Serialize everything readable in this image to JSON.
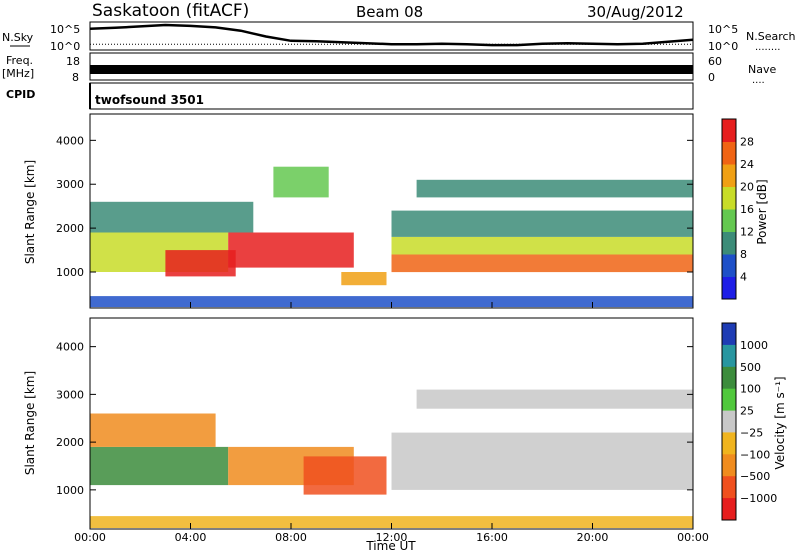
{
  "header": {
    "station": "Saskatoon (fitACF)",
    "beam": "Beam 08",
    "date": "30/Aug/2012"
  },
  "noise_panel": {
    "left_label": "N.Sky",
    "left_ticks": [
      "10^5",
      "10^0"
    ],
    "right_ticks": [
      "10^5",
      "10^0"
    ],
    "right_label": "N.Search",
    "right_dots": "........",
    "sky_noise_log": [
      4.0,
      4.2,
      4.5,
      4.8,
      4.6,
      4.3,
      3.6,
      2.4,
      1.5,
      1.4,
      1.2,
      1.0,
      0.8,
      0.8,
      0.9,
      0.8,
      0.6,
      0.6,
      0.9,
      1.0,
      0.9,
      0.8,
      0.9,
      1.3,
      1.7
    ],
    "search_noise_log": [
      0.8,
      0.8,
      0.8,
      0.8,
      0.8,
      0.8,
      0.8,
      0.8,
      0.8,
      0.8,
      0.8,
      0.8,
      0.8,
      0.8,
      0.8,
      0.8,
      0.8,
      0.8,
      0.8,
      0.8,
      0.8,
      0.8,
      0.8,
      0.8,
      0.8
    ]
  },
  "freq_panel": {
    "left_label_1": "Freq.",
    "left_label_2": "[MHz]",
    "left_ticks": [
      "18",
      "8"
    ],
    "right_ticks": [
      "60",
      "0"
    ],
    "right_label": "Nave",
    "right_dots": "....",
    "freq_mhz": 11,
    "nave": 33
  },
  "cpid_panel": {
    "label": "CPID",
    "program": "twofsound 3501"
  },
  "chart_data": [
    {
      "type": "heatmap",
      "name": "power",
      "ylabel": "Slant Range [km]",
      "xlabel": "Time UT",
      "x_ticks": [
        "00:00",
        "04:00",
        "08:00",
        "12:00",
        "16:00",
        "20:00",
        "00:00"
      ],
      "xlim_hours": [
        0,
        24
      ],
      "ylim_km": [
        180,
        4600
      ],
      "y_ticks": [
        "1000",
        "2000",
        "3000",
        "4000"
      ],
      "colorbar_label": "Power [dB]",
      "colorbar_ticks": [
        "4",
        "8",
        "12",
        "16",
        "20",
        "24",
        "28"
      ],
      "colorbar_colors": [
        "#1e1ee6",
        "#1e50c8",
        "#3c8c78",
        "#64c850",
        "#c8dc28",
        "#f0a014",
        "#f06414",
        "#e61e1e"
      ],
      "bands": [
        {
          "t0": 0.0,
          "t1": 5.5,
          "r0": 1000,
          "r1": 1900,
          "level": 4
        },
        {
          "t0": 0.0,
          "t1": 6.5,
          "r0": 1900,
          "r1": 2600,
          "level": 2
        },
        {
          "t0": 3.0,
          "t1": 5.8,
          "r0": 900,
          "r1": 1500,
          "level": 7
        },
        {
          "t0": 5.5,
          "t1": 10.5,
          "r0": 1100,
          "r1": 1900,
          "level": 7
        },
        {
          "t0": 10.0,
          "t1": 11.8,
          "r0": 700,
          "r1": 1000,
          "level": 5
        },
        {
          "t0": 12.0,
          "t1": 24.0,
          "r0": 1000,
          "r1": 1400,
          "level": 6
        },
        {
          "t0": 12.0,
          "t1": 24.0,
          "r0": 1400,
          "r1": 1800,
          "level": 4
        },
        {
          "t0": 12.0,
          "t1": 24.0,
          "r0": 1800,
          "r1": 2400,
          "level": 2
        },
        {
          "t0": 13.0,
          "t1": 24.0,
          "r0": 2700,
          "r1": 3100,
          "level": 2
        },
        {
          "t0": 7.3,
          "t1": 9.5,
          "r0": 2700,
          "r1": 3400,
          "level": 3
        },
        {
          "t0": 0.0,
          "t1": 24.0,
          "r0": 200,
          "r1": 450,
          "level": 1
        }
      ]
    },
    {
      "type": "heatmap",
      "name": "velocity",
      "ylabel": "Slant Range [km]",
      "xlabel": "Time UT",
      "x_ticks": [
        "00:00",
        "04:00",
        "08:00",
        "12:00",
        "16:00",
        "20:00",
        "00:00"
      ],
      "xlim_hours": [
        0,
        24
      ],
      "ylim_km": [
        180,
        4600
      ],
      "y_ticks": [
        "1000",
        "2000",
        "3000",
        "4000"
      ],
      "colorbar_label": "Velocity [m s⁻¹]",
      "colorbar_ticks": [
        "1000",
        "500",
        "100",
        "25",
        "−25",
        "−100",
        "−500",
        "−1000"
      ],
      "colorbar_colors": [
        "#1e3cb4",
        "#2896a0",
        "#3c8c3c",
        "#50c83c",
        "#c8c8c8",
        "#f0b41e",
        "#f08c1e",
        "#f0501e",
        "#e61e1e"
      ],
      "bands": [
        {
          "t0": 0.0,
          "t1": 5.5,
          "r0": 1100,
          "r1": 1900,
          "level": 2
        },
        {
          "t0": 0.0,
          "t1": 5.0,
          "r0": 1900,
          "r1": 2600,
          "level": 6
        },
        {
          "t0": 5.5,
          "t1": 10.5,
          "r0": 1100,
          "r1": 1900,
          "level": 6
        },
        {
          "t0": 8.5,
          "t1": 11.8,
          "r0": 900,
          "r1": 1700,
          "level": 7
        },
        {
          "t0": 12.0,
          "t1": 24.0,
          "r0": 1000,
          "r1": 2200,
          "level": 4
        },
        {
          "t0": 13.0,
          "t1": 24.0,
          "r0": 2700,
          "r1": 3100,
          "level": 4
        },
        {
          "t0": 0.0,
          "t1": 24.0,
          "r0": 200,
          "r1": 450,
          "level": 5
        }
      ]
    }
  ]
}
